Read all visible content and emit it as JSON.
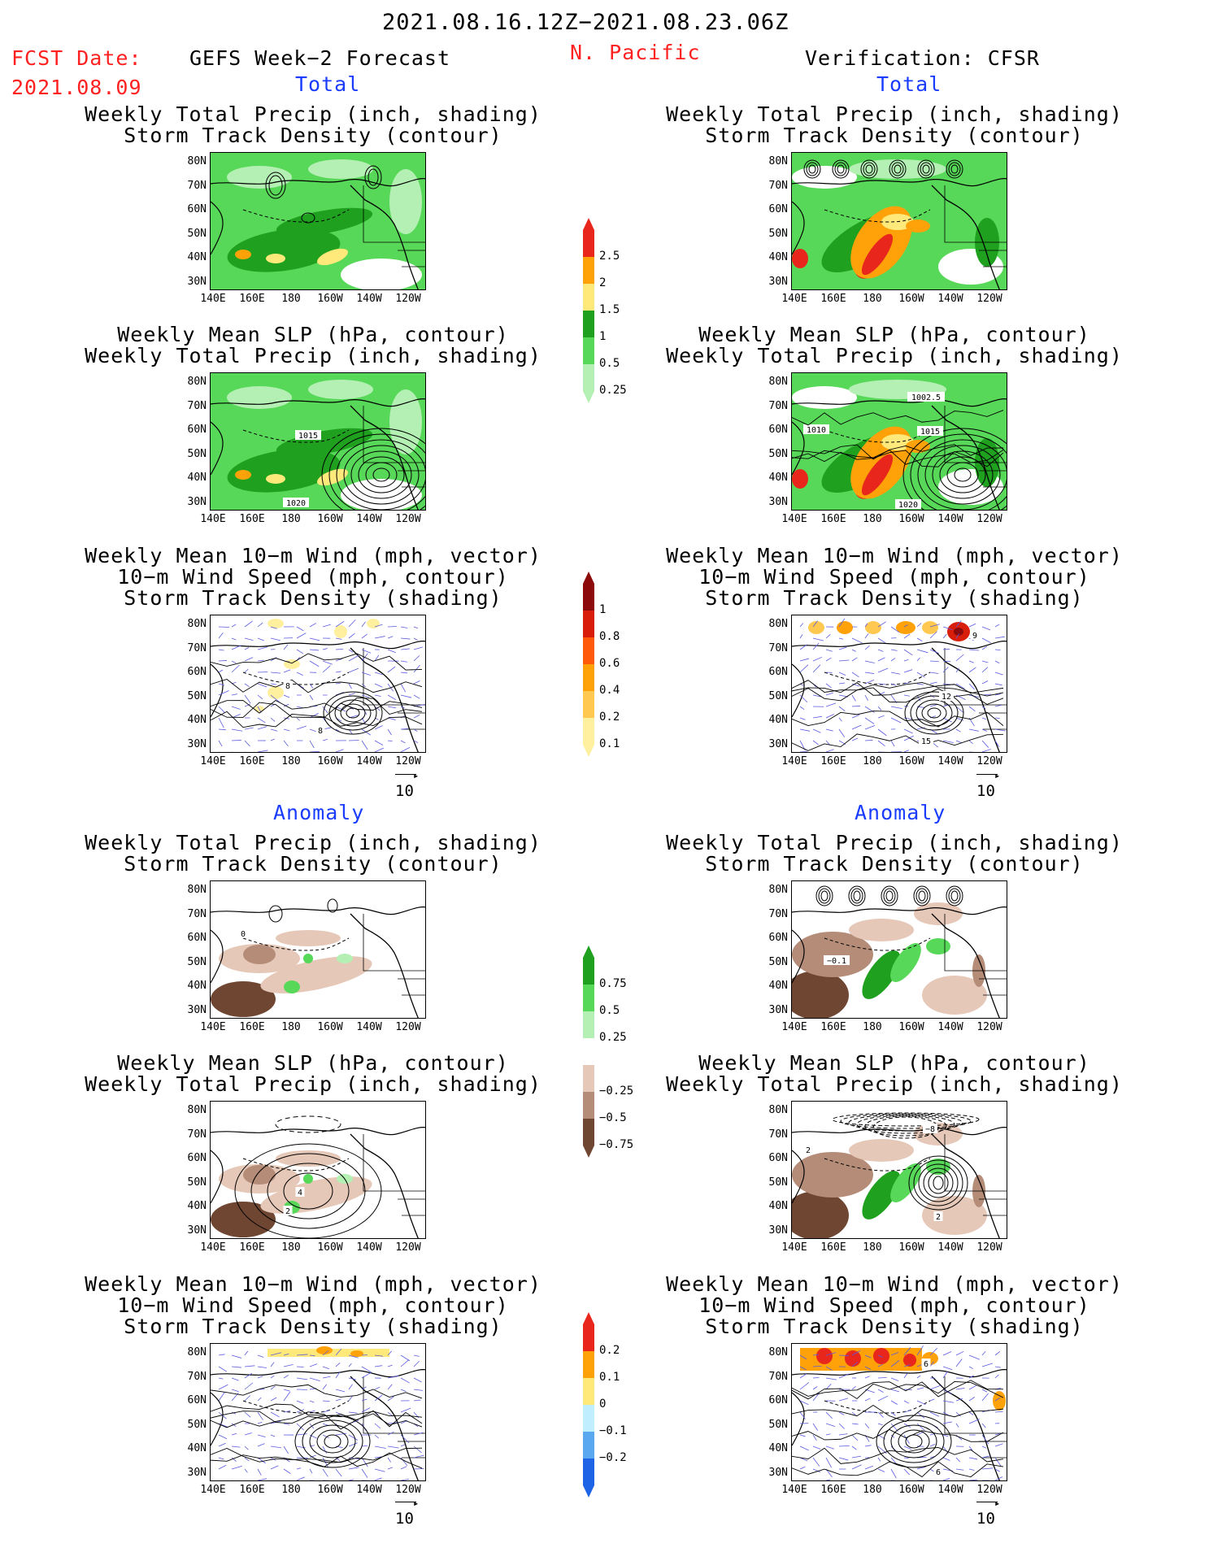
{
  "header": {
    "date_range": "2021.08.16.12Z−2021.08.23.06Z",
    "fcst_label": "FCST Date:",
    "fcst_date": "2021.08.09",
    "left_title": "GEFS Week−2 Forecast",
    "region": "N. Pacific",
    "right_title": "Verification: CFSR"
  },
  "sections": {
    "total": "Total",
    "anomaly": "Anomaly"
  },
  "panel_titles": {
    "precip_track": [
      "Weekly Total Precip (inch, shading)",
      "Storm Track Density (contour)"
    ],
    "slp_precip": [
      "Weekly Mean SLP (hPa, contour)",
      "Weekly Total Precip (inch, shading)"
    ],
    "wind_track": [
      "Weekly Mean 10−m Wind (mph, vector)",
      "10−m Wind Speed (mph, contour)",
      "Storm Track Density (shading)"
    ]
  },
  "axes": {
    "lat_ticks": [
      "80N",
      "70N",
      "60N",
      "50N",
      "40N",
      "30N"
    ],
    "lon_ticks": [
      "140E",
      "160E",
      "180",
      "160W",
      "140W",
      "120W"
    ]
  },
  "vector_reference": "10",
  "colorbars": {
    "precip_total": {
      "labels": [
        "2.5",
        "2",
        "1.5",
        "1",
        "0.5",
        "0.25"
      ],
      "colors": [
        "#e8261c",
        "#ffa20a",
        "#ffe97a",
        "#1fa01f",
        "#58d858",
        "#b4f0b4"
      ]
    },
    "track_total": {
      "labels": [
        "1",
        "0.8",
        "0.6",
        "0.4",
        "0.2",
        "0.1"
      ],
      "colors": [
        "#8c0a0a",
        "#d81e0a",
        "#ff5a0a",
        "#ffa20a",
        "#ffc850",
        "#fff0a0"
      ]
    },
    "precip_anom": {
      "labels": [
        "0.75",
        "0.5",
        "0.25",
        "−0.25",
        "−0.5",
        "−0.75"
      ],
      "colors": [
        "#1fa01f",
        "#58d858",
        "#b4f0b4",
        "#ffffff",
        "#e6c8b8",
        "#b48c78",
        "#6e4632"
      ]
    },
    "track_anom": {
      "labels": [
        "0.2",
        "0.1",
        "0",
        "−0.1",
        "−0.2"
      ],
      "colors": [
        "#e8261c",
        "#ffa20a",
        "#ffe97a",
        "#bfefff",
        "#5aa8f0",
        "#1e64e6"
      ]
    }
  },
  "contour_labels": {
    "fcst_slp_total": [
      "1015",
      "1020"
    ],
    "verif_slp_total": [
      "1002.5",
      "1010",
      "1015",
      "1020"
    ],
    "fcst_wind_total": [
      "8",
      "8"
    ],
    "verif_wind_total": [
      "9",
      "12",
      "15"
    ],
    "fcst_precip_anom": [
      "0"
    ],
    "verif_precip_anom": [
      "−0.1"
    ],
    "fcst_slp_anom": [
      "4",
      "2"
    ],
    "verif_slp_anom": [
      "−8",
      "2",
      "2"
    ],
    "verif_wind_anom": [
      "6",
      "6"
    ]
  }
}
